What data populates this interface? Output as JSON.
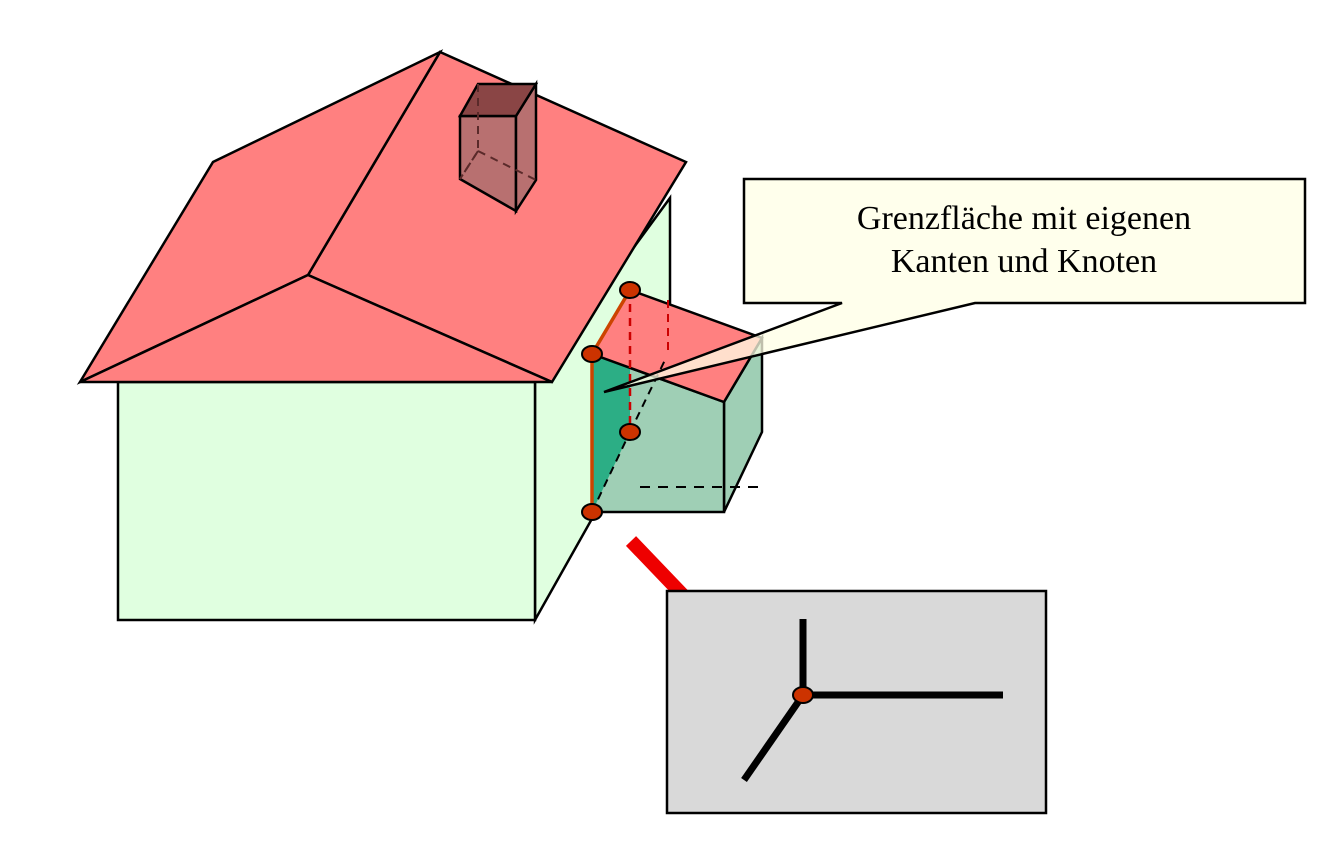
{
  "callout": {
    "line1": "Grenzfläche mit eigenen",
    "line2": "Kanten und Knoten"
  },
  "colors": {
    "roof": "#ff8080",
    "wall": "#e0ffe0",
    "annex_wall": "#9fcfb5",
    "boundary_face": "#1faa80",
    "chimney": "#b87070",
    "node": "#cc3300",
    "node_edge": "#cc4400",
    "arrow": "#ee0000",
    "inset_background": "#d9d9d9",
    "callout_background": "#ffffe6"
  }
}
